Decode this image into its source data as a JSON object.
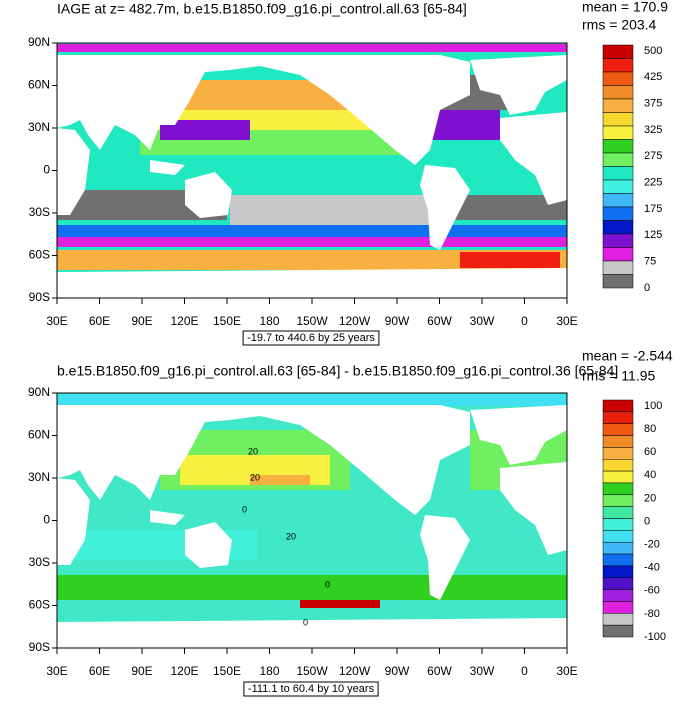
{
  "panels": [
    {
      "title": "IAGE at z= 482.7m, b.e15.B1850.f09_g16.pi_control.all.63 [65-84]",
      "mean": "mean = 170.9",
      "rms": "rms = 203.4",
      "lat_labels": [
        "90N",
        "60N",
        "30N",
        "0",
        "30S",
        "60S",
        "90S"
      ],
      "lon_labels": [
        "30E",
        "60E",
        "90E",
        "120E",
        "150E",
        "180",
        "150W",
        "120W",
        "90W",
        "60W",
        "30W",
        "0",
        "30E"
      ],
      "info": "-19.7 to 440.6 by 25 years",
      "colorbar_labels": [
        500,
        425,
        375,
        325,
        275,
        225,
        175,
        125,
        75,
        0
      ],
      "colorbar_colors": [
        "#c80000",
        "#f02010",
        "#f05a10",
        "#f08c28",
        "#f8b040",
        "#f8d830",
        "#f8f040",
        "#30d020",
        "#70f060",
        "#20e8c0",
        "#40f0e0",
        "#40b8f8",
        "#1070f0",
        "#0018c8",
        "#8010d0",
        "#e020e0",
        "#c8c8c8",
        "#707070"
      ],
      "contour_labels": []
    },
    {
      "title": "b.e15.B1850.f09_g16.pi_control.all.63 [65-84] - b.e15.B1850.f09_g16.pi_control.36 [65-84]",
      "mean": "mean = -2.544",
      "rms": "rms = 11.95",
      "lat_labels": [
        "90N",
        "60N",
        "30N",
        "0",
        "30S",
        "60S",
        "90S"
      ],
      "lon_labels": [
        "30E",
        "60E",
        "90E",
        "120E",
        "150E",
        "180",
        "150W",
        "120W",
        "90W",
        "60W",
        "30W",
        "0",
        "30E"
      ],
      "info": "-111.1 to 60.4 by 10 years",
      "colorbar_labels": [
        100,
        80,
        60,
        40,
        20,
        0,
        -20,
        -40,
        -60,
        -80,
        -100
      ],
      "colorbar_colors": [
        "#c80000",
        "#e82010",
        "#f05a10",
        "#f08c28",
        "#f8b040",
        "#f8d830",
        "#f8f040",
        "#30d020",
        "#70f060",
        "#40e8a0",
        "#40f0d8",
        "#40e0f0",
        "#40b8f8",
        "#1070f0",
        "#0018c8",
        "#5010c8",
        "#a020e0",
        "#e020e0",
        "#c8c8c8",
        "#707070"
      ],
      "contour_labels": [
        "20",
        "20",
        "0",
        "20",
        "0",
        "0"
      ]
    }
  ]
}
